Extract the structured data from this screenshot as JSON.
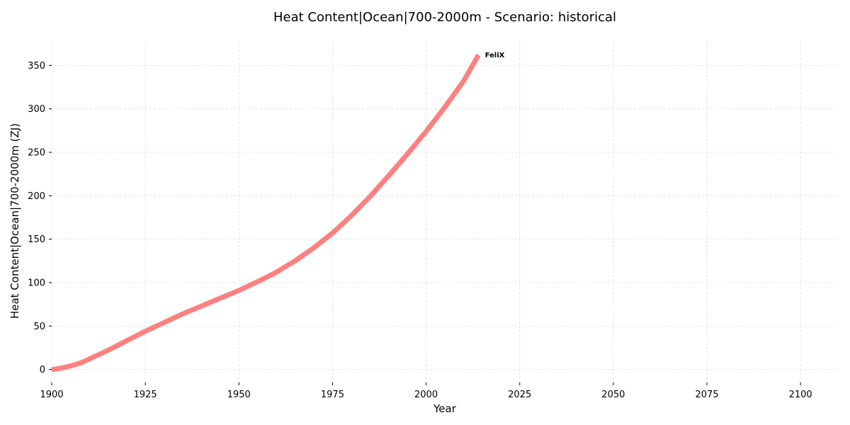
{
  "chart_data": {
    "type": "line",
    "title": "Heat Content|Ocean|700-2000m - Scenario: historical",
    "xlabel": "Year",
    "ylabel": "Heat Content|Ocean|700-2000m (ZJ)",
    "xlim": [
      1900,
      2110
    ],
    "ylim": [
      -15,
      378
    ],
    "xticks": [
      1900,
      1925,
      1950,
      1975,
      2000,
      2025,
      2050,
      2075,
      2100
    ],
    "yticks": [
      0,
      50,
      100,
      150,
      200,
      250,
      300,
      350
    ],
    "grid": true,
    "series": [
      {
        "name": "FeliX",
        "color": "#ff7f7f",
        "x": [
          1900,
          1902,
          1905,
          1908,
          1910,
          1915,
          1920,
          1925,
          1930,
          1935,
          1940,
          1945,
          1950,
          1955,
          1960,
          1965,
          1970,
          1975,
          1980,
          1985,
          1990,
          1995,
          2000,
          2005,
          2010,
          2014
        ],
        "y": [
          0,
          1,
          4,
          8,
          12,
          22,
          33,
          44,
          54,
          64,
          73,
          82,
          91,
          101,
          112,
          125,
          140,
          157,
          177,
          199,
          223,
          248,
          274,
          302,
          332,
          362
        ]
      }
    ]
  }
}
